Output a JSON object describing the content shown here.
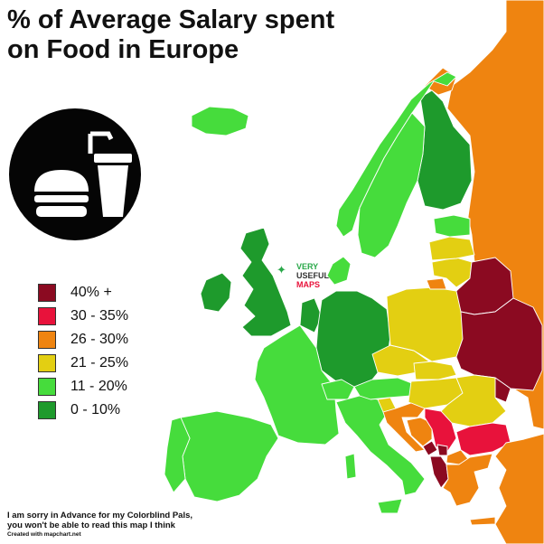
{
  "title": {
    "line1": "% of Average Salary spent",
    "line2": "on Food in Europe"
  },
  "emblem": {
    "icon": "burger-and-drink-icon"
  },
  "legend": {
    "items": [
      {
        "label": "40% +",
        "color": "#8b0a21"
      },
      {
        "label": "30 - 35%",
        "color": "#e8123b"
      },
      {
        "label": "26 - 30%",
        "color": "#ef8410"
      },
      {
        "label": "21 - 25%",
        "color": "#e3cf12"
      },
      {
        "label": "11 - 20%",
        "color": "#46dc3c"
      },
      {
        "label": "0 - 10%",
        "color": "#1e9a2c"
      }
    ]
  },
  "brand": {
    "line1": "VERY",
    "line2": "USEFUL",
    "line3": "MAPS",
    "icon": "map-pin-icon"
  },
  "footer": {
    "line1": "I am sorry in Advance for my Colorblind Pals,",
    "line2": "you won't be able to read this map I think",
    "line3": "Created with mapchart.net"
  },
  "regions": [
    {
      "name": "Iceland",
      "bracket": "11 - 20%"
    },
    {
      "name": "Ireland",
      "bracket": "0 - 10%"
    },
    {
      "name": "United Kingdom",
      "bracket": "0 - 10%"
    },
    {
      "name": "Norway",
      "bracket": "11 - 20%"
    },
    {
      "name": "Sweden",
      "bracket": "11 - 20%"
    },
    {
      "name": "Finland",
      "bracket": "0 - 10%"
    },
    {
      "name": "Denmark",
      "bracket": "11 - 20%"
    },
    {
      "name": "Germany",
      "bracket": "0 - 10%"
    },
    {
      "name": "Netherlands",
      "bracket": "0 - 10%"
    },
    {
      "name": "France",
      "bracket": "11 - 20%"
    },
    {
      "name": "Spain",
      "bracket": "11 - 20%"
    },
    {
      "name": "Portugal",
      "bracket": "11 - 20%"
    },
    {
      "name": "Italy",
      "bracket": "11 - 20%"
    },
    {
      "name": "Switzerland",
      "bracket": "11 - 20%"
    },
    {
      "name": "Austria",
      "bracket": "11 - 20%"
    },
    {
      "name": "Estonia",
      "bracket": "11 - 20%"
    },
    {
      "name": "Latvia",
      "bracket": "21 - 25%"
    },
    {
      "name": "Lithuania",
      "bracket": "21 - 25%"
    },
    {
      "name": "Poland",
      "bracket": "21 - 25%"
    },
    {
      "name": "Czechia",
      "bracket": "21 - 25%"
    },
    {
      "name": "Slovakia",
      "bracket": "21 - 25%"
    },
    {
      "name": "Hungary",
      "bracket": "21 - 25%"
    },
    {
      "name": "Slovenia",
      "bracket": "21 - 25%"
    },
    {
      "name": "Croatia",
      "bracket": "26 - 30%"
    },
    {
      "name": "Bosnia and Herzegovina",
      "bracket": "26 - 30%"
    },
    {
      "name": "Serbia",
      "bracket": "30 - 35%"
    },
    {
      "name": "Montenegro",
      "bracket": "40% +"
    },
    {
      "name": "Kosovo",
      "bracket": "40% +"
    },
    {
      "name": "Albania",
      "bracket": "40% +"
    },
    {
      "name": "North Macedonia",
      "bracket": "26 - 30%"
    },
    {
      "name": "Romania",
      "bracket": "21 - 25%"
    },
    {
      "name": "Bulgaria",
      "bracket": "30 - 35%"
    },
    {
      "name": "Greece",
      "bracket": "26 - 30%"
    },
    {
      "name": "Turkey",
      "bracket": "26 - 30%"
    },
    {
      "name": "Belarus",
      "bracket": "40% +"
    },
    {
      "name": "Ukraine",
      "bracket": "40% +"
    },
    {
      "name": "Moldova",
      "bracket": "40% +"
    },
    {
      "name": "Russia",
      "bracket": "26 - 30%"
    },
    {
      "name": "Kaliningrad",
      "bracket": "26 - 30%"
    }
  ]
}
